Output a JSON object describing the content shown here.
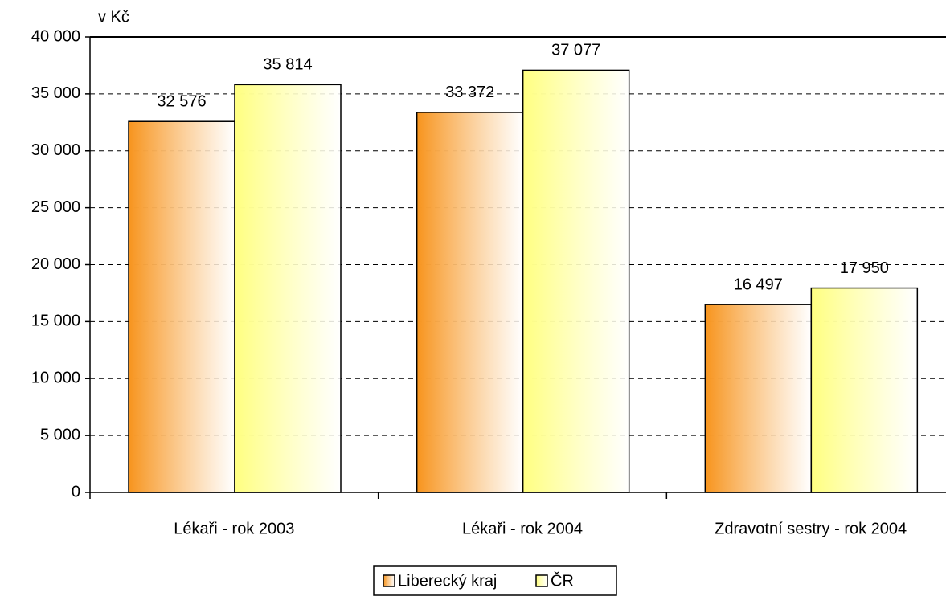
{
  "chart_data": {
    "type": "bar",
    "unit_label": "v Kč",
    "categories": [
      "Lékaři - rok 2003",
      "Lékaři - rok 2004",
      "Zdravotní sestry - rok 2004"
    ],
    "series": [
      {
        "name": "Liberecký kraj",
        "color": "#f7941d",
        "values": [
          32576,
          33372,
          16497
        ],
        "value_labels": [
          "32 576",
          "33 372",
          "16 497"
        ]
      },
      {
        "name": "ČR",
        "color": "#ffff80",
        "values": [
          35814,
          37077,
          17950
        ],
        "value_labels": [
          "35 814",
          "37 077",
          "17 950"
        ]
      }
    ],
    "ylim": [
      0,
      40000
    ],
    "yticks": [
      0,
      {
        "value": 5000,
        "label": "5 000"
      },
      {
        "value": 10000,
        "label": "10 000"
      },
      {
        "value": 15000,
        "label": "15 000"
      },
      {
        "value": 20000,
        "label": "20 000"
      },
      {
        "value": 25000,
        "label": "25 000"
      },
      {
        "value": 30000,
        "label": "30 000"
      },
      {
        "value": 35000,
        "label": "35 000"
      },
      {
        "value": 40000,
        "label": "40 000"
      }
    ],
    "grid": true,
    "legend": "bottom"
  }
}
